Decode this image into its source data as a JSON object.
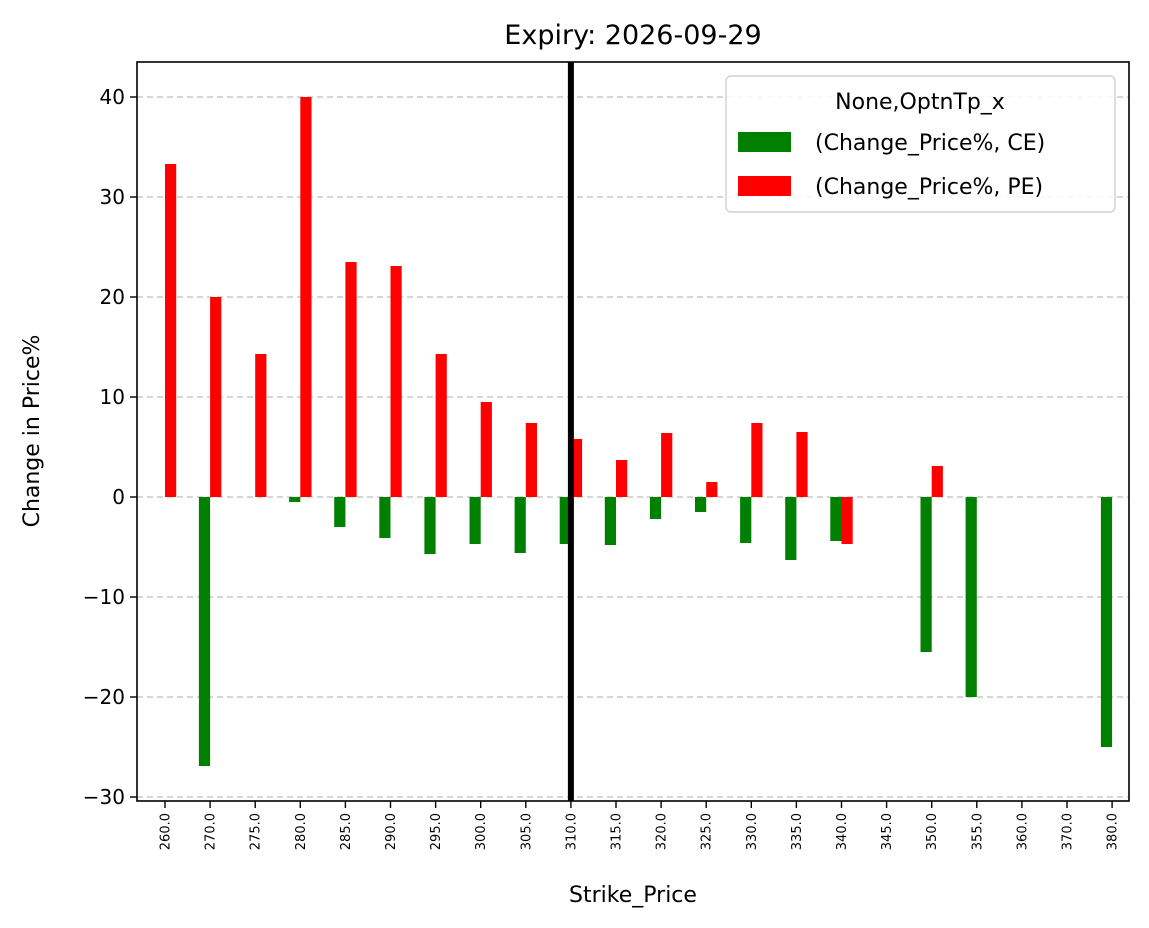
{
  "chart_data": {
    "type": "bar",
    "title": "Expiry: 2026-09-29",
    "xlabel": "Strike_Price",
    "ylabel": "Change in Price%",
    "categories": [
      "260.0",
      "270.0",
      "275.0",
      "280.0",
      "285.0",
      "290.0",
      "295.0",
      "300.0",
      "305.0",
      "310.0",
      "315.0",
      "320.0",
      "325.0",
      "330.0",
      "335.0",
      "340.0",
      "345.0",
      "350.0",
      "355.0",
      "360.0",
      "370.0",
      "380.0"
    ],
    "series": [
      {
        "name": "(Change_Price%, CE)",
        "color": "#008000",
        "values": [
          null,
          -26.9,
          null,
          -0.5,
          -3.0,
          -4.1,
          -5.7,
          -4.7,
          -5.6,
          -4.7,
          -4.8,
          -2.2,
          -1.5,
          -4.6,
          -6.3,
          -4.4,
          null,
          -15.5,
          -20.0,
          null,
          null,
          -25.0
        ]
      },
      {
        "name": "(Change_Price%, PE)",
        "color": "#ff0000",
        "values": [
          33.3,
          20.0,
          14.3,
          40.0,
          23.5,
          23.1,
          14.3,
          9.5,
          7.4,
          5.8,
          3.7,
          6.4,
          1.5,
          7.4,
          6.5,
          -4.7,
          null,
          3.1,
          null,
          null,
          null,
          null
        ]
      }
    ],
    "legend_title": "None,OptnTp_x",
    "legend_position": "top-right",
    "ylim": [
      -30.2,
      43.4
    ],
    "yticks": [
      -30,
      -20,
      -10,
      0,
      10,
      20,
      30,
      40
    ],
    "ytick_labels": [
      "−30",
      "−20",
      "−10",
      "0",
      "10",
      "20",
      "30",
      "40"
    ],
    "vline_at": "310.0",
    "grid": "y-dashed"
  }
}
